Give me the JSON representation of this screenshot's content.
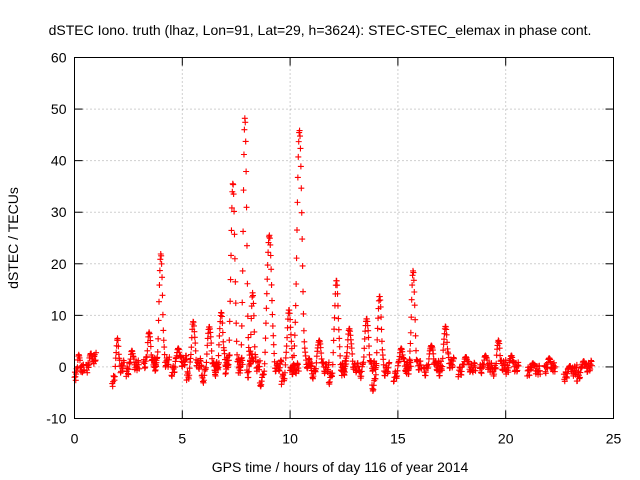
{
  "chart_data": {
    "type": "scatter",
    "title": "dSTEC Iono. truth (lhaz, Lon=91, Lat=29, h=3624): STEC-STEC_elemax in phase cont.",
    "xlabel": "GPS time / hours of day 116 of year 2014",
    "ylabel": "dSTEC  / TECUs",
    "xlim": [
      0,
      25
    ],
    "ylim": [
      -10,
      60
    ],
    "xticks": [
      0,
      5,
      10,
      15,
      20,
      25
    ],
    "yticks": [
      -10,
      0,
      10,
      20,
      30,
      40,
      50,
      60
    ],
    "grid": true,
    "marker": "plus",
    "color": "#ff0000",
    "arcs": [
      {
        "start": 0.0,
        "end": 0.45,
        "v0": -2.0,
        "peak": 3.5,
        "v1": 0.0
      },
      {
        "start": 0.55,
        "end": 1.0,
        "v0": -0.5,
        "peak": 4.0,
        "v1": 2.0
      },
      {
        "start": 1.75,
        "end": 2.3,
        "v0": -3.0,
        "peak": 7.5,
        "v1": 0.5
      },
      {
        "start": 2.4,
        "end": 3.0,
        "v0": -1.0,
        "peak": 4.0,
        "v1": 0.5
      },
      {
        "start": 3.2,
        "end": 3.8,
        "v0": 0.5,
        "peak": 7.0,
        "v1": 1.0
      },
      {
        "start": 3.7,
        "end": 4.4,
        "v0": 0.0,
        "peak": 22.5,
        "v1": 1.0
      },
      {
        "start": 4.5,
        "end": 5.2,
        "v0": -1.0,
        "peak": 5.0,
        "v1": 1.5
      },
      {
        "start": 5.2,
        "end": 5.9,
        "v0": -2.0,
        "peak": 10.5,
        "v1": 1.0
      },
      {
        "start": 5.9,
        "end": 6.7,
        "v0": -2.5,
        "peak": 9.5,
        "v1": 0.5
      },
      {
        "start": 6.5,
        "end": 7.2,
        "v0": -1.0,
        "peak": 12.0,
        "v1": 1.5
      },
      {
        "start": 7.0,
        "end": 7.8,
        "v0": -0.5,
        "peak": 36.5,
        "v1": 1.0
      },
      {
        "start": 7.6,
        "end": 8.3,
        "v0": -1.0,
        "peak": 50.0,
        "v1": 2.0
      },
      {
        "start": 8.0,
        "end": 8.6,
        "v0": -1.5,
        "peak": 15.5,
        "v1": 0.5
      },
      {
        "start": 8.6,
        "end": 9.6,
        "v0": -3.0,
        "peak": 27.5,
        "v1": 0.5
      },
      {
        "start": 9.6,
        "end": 10.4,
        "v0": -2.5,
        "peak": 12.5,
        "v1": 0.0
      },
      {
        "start": 10.0,
        "end": 11.0,
        "v0": -1.0,
        "peak": 47.0,
        "v1": 1.0
      },
      {
        "start": 11.0,
        "end": 11.8,
        "v0": -1.5,
        "peak": 6.0,
        "v1": 0.0
      },
      {
        "start": 11.8,
        "end": 12.6,
        "v0": -2.5,
        "peak": 18.5,
        "v1": 0.5
      },
      {
        "start": 12.4,
        "end": 13.2,
        "v0": -1.0,
        "peak": 8.0,
        "v1": 0.0
      },
      {
        "start": 13.2,
        "end": 14.0,
        "v0": -1.5,
        "peak": 10.5,
        "v1": 0.5
      },
      {
        "start": 13.8,
        "end": 14.6,
        "v0": -4.0,
        "peak": 16.0,
        "v1": 0.0
      },
      {
        "start": 14.8,
        "end": 15.6,
        "v0": -2.0,
        "peak": 5.0,
        "v1": 0.5
      },
      {
        "start": 15.4,
        "end": 16.1,
        "v0": -1.0,
        "peak": 19.5,
        "v1": 0.5
      },
      {
        "start": 16.2,
        "end": 17.0,
        "v0": -1.0,
        "peak": 5.0,
        "v1": 0.5
      },
      {
        "start": 16.9,
        "end": 17.6,
        "v0": -1.0,
        "peak": 9.0,
        "v1": 1.0
      },
      {
        "start": 17.8,
        "end": 18.6,
        "v0": -1.0,
        "peak": 2.5,
        "v1": 0.0
      },
      {
        "start": 18.8,
        "end": 19.4,
        "v0": -0.5,
        "peak": 2.5,
        "v1": 0.0
      },
      {
        "start": 19.4,
        "end": 20.0,
        "v0": -1.0,
        "peak": 6.0,
        "v1": 0.5
      },
      {
        "start": 20.0,
        "end": 20.6,
        "v0": -0.5,
        "peak": 2.5,
        "v1": 0.0
      },
      {
        "start": 21.0,
        "end": 21.6,
        "v0": -1.0,
        "peak": 1.0,
        "v1": -0.5
      },
      {
        "start": 21.8,
        "end": 22.3,
        "v0": -0.5,
        "peak": 2.0,
        "v1": 0.0
      },
      {
        "start": 22.7,
        "end": 23.3,
        "v0": -2.0,
        "peak": 1.0,
        "v1": -0.5
      },
      {
        "start": 23.3,
        "end": 24.0,
        "v0": -2.0,
        "peak": 2.5,
        "v1": 0.5
      }
    ]
  }
}
